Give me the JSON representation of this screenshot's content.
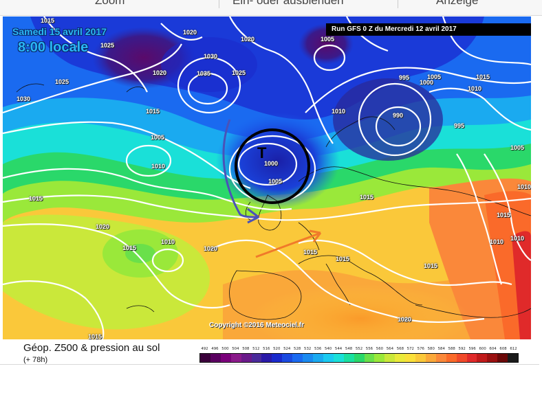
{
  "toolbar": {
    "items": [
      "Zoom",
      "Ein- oder ausblenden",
      "Anzeige"
    ]
  },
  "map": {
    "date_label": "Samedi 15 avril 2017",
    "time_label": "8:00 locale",
    "run_label": "Run GFS 0 Z du Mercredi 12 avril 2017",
    "copyright": "Copyright ©2016 Meteociel.fr",
    "low_marker": "T",
    "isobar_labels": [
      "1015",
      "1025",
      "1030",
      "1025",
      "1020",
      "1030",
      "1035",
      "1025",
      "1020",
      "1005",
      "1020",
      "995",
      "990",
      "1005",
      "1000",
      "1015",
      "1010",
      "995",
      "1010",
      "1015",
      "1005",
      "1010",
      "1000",
      "1005",
      "1015",
      "1005",
      "1010",
      "1015",
      "1020",
      "1015",
      "1010",
      "1020",
      "1015",
      "1015",
      "1015",
      "1010",
      "1015",
      "1010",
      "1020",
      "1015"
    ],
    "colors": {
      "low_trough": "#1a2fcc",
      "high_ridge": "#ff8a1f",
      "arrow_blue": "#4a52b8",
      "arrow_orange": "#f07a2a",
      "circle": "#000000"
    }
  },
  "legend": {
    "title": "Géop. Z500 & pression au sol",
    "subtitle": "(+ 78h)",
    "scale_values": [
      "492",
      "496",
      "500",
      "504",
      "508",
      "512",
      "516",
      "520",
      "524",
      "528",
      "532",
      "536",
      "540",
      "544",
      "548",
      "552",
      "556",
      "560",
      "564",
      "568",
      "572",
      "576",
      "580",
      "584",
      "588",
      "592",
      "596",
      "600",
      "604",
      "608",
      "612"
    ],
    "scale_colors": [
      "#3a003a",
      "#5a0060",
      "#7a007a",
      "#8a1a8a",
      "#6a1a8a",
      "#4a2a9a",
      "#2a1aa8",
      "#1a2acc",
      "#1a4ae0",
      "#1a6af0",
      "#1a8af0",
      "#1aaaf0",
      "#1acaf0",
      "#1ae0d8",
      "#1ae0a0",
      "#2ad86a",
      "#6ae04a",
      "#9ae83a",
      "#cae83a",
      "#eaea3a",
      "#fae03a",
      "#fac83a",
      "#faa83a",
      "#fa883a",
      "#fa6a2a",
      "#f04a2a",
      "#e02a2a",
      "#c01a1a",
      "#9a1010",
      "#6a0808",
      "#1a1a1a"
    ]
  }
}
